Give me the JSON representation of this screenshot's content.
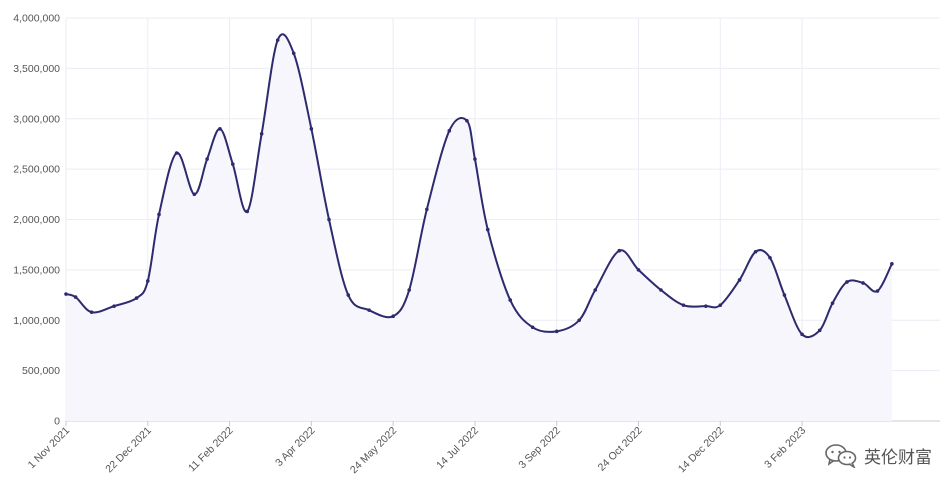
{
  "chart_data": {
    "type": "area",
    "title": "",
    "xlabel": "",
    "ylabel": "",
    "ylim": [
      0,
      4000000
    ],
    "yticks": [
      0,
      500000,
      1000000,
      1500000,
      2000000,
      2500000,
      3000000,
      3500000,
      4000000
    ],
    "ytick_labels": [
      "0",
      "500,000",
      "1,000,000",
      "1,500,000",
      "2,000,000",
      "2,500,000",
      "3,000,000",
      "3,500,000",
      "4,000,000"
    ],
    "xlim": [
      "2021-11-01",
      "2023-04-30"
    ],
    "xtick_labels": [
      "1 Nov 2021",
      "22 Dec 2021",
      "11 Feb 2022",
      "3 Apr 2022",
      "24 May 2022",
      "14 Jul 2022",
      "3 Sep 2022",
      "24 Oct 2022",
      "14 Dec 2022",
      "3 Feb 2023"
    ],
    "xtick_dates": [
      "2021-11-01",
      "2021-12-22",
      "2022-02-11",
      "2022-04-03",
      "2022-05-24",
      "2022-07-14",
      "2022-09-03",
      "2022-10-24",
      "2022-12-14",
      "2023-02-03"
    ],
    "grid": true,
    "color": "#2e2a6e",
    "series": [
      {
        "name": "",
        "x": [
          "2021-11-01",
          "2021-11-07",
          "2021-11-17",
          "2021-12-01",
          "2021-12-15",
          "2021-12-22",
          "2021-12-29",
          "2022-01-09",
          "2022-01-20",
          "2022-01-28",
          "2022-02-05",
          "2022-02-13",
          "2022-02-22",
          "2022-03-03",
          "2022-03-13",
          "2022-03-23",
          "2022-04-03",
          "2022-04-14",
          "2022-04-26",
          "2022-05-09",
          "2022-05-24",
          "2022-06-03",
          "2022-06-14",
          "2022-06-28",
          "2022-07-09",
          "2022-07-14",
          "2022-07-22",
          "2022-08-05",
          "2022-08-19",
          "2022-09-03",
          "2022-09-17",
          "2022-09-27",
          "2022-10-12",
          "2022-10-24",
          "2022-11-07",
          "2022-11-21",
          "2022-12-05",
          "2022-12-14",
          "2022-12-26",
          "2023-01-05",
          "2023-01-14",
          "2023-01-23",
          "2023-02-03",
          "2023-02-14",
          "2023-02-22",
          "2023-03-03",
          "2023-03-13",
          "2023-03-22",
          "2023-03-31"
        ],
        "values": [
          1260000,
          1230000,
          1080000,
          1140000,
          1220000,
          1390000,
          2050000,
          2660000,
          2250000,
          2600000,
          2900000,
          2550000,
          2080000,
          2850000,
          3780000,
          3650000,
          2900000,
          2000000,
          1250000,
          1100000,
          1040000,
          1300000,
          2100000,
          2880000,
          2980000,
          2600000,
          1900000,
          1200000,
          930000,
          890000,
          1000000,
          1300000,
          1690000,
          1500000,
          1300000,
          1150000,
          1140000,
          1150000,
          1400000,
          1680000,
          1620000,
          1250000,
          860000,
          900000,
          1170000,
          1380000,
          1370000,
          1290000,
          1560000
        ]
      }
    ]
  },
  "watermark": {
    "text": "英伦财富",
    "icon": "wechat-icon"
  }
}
